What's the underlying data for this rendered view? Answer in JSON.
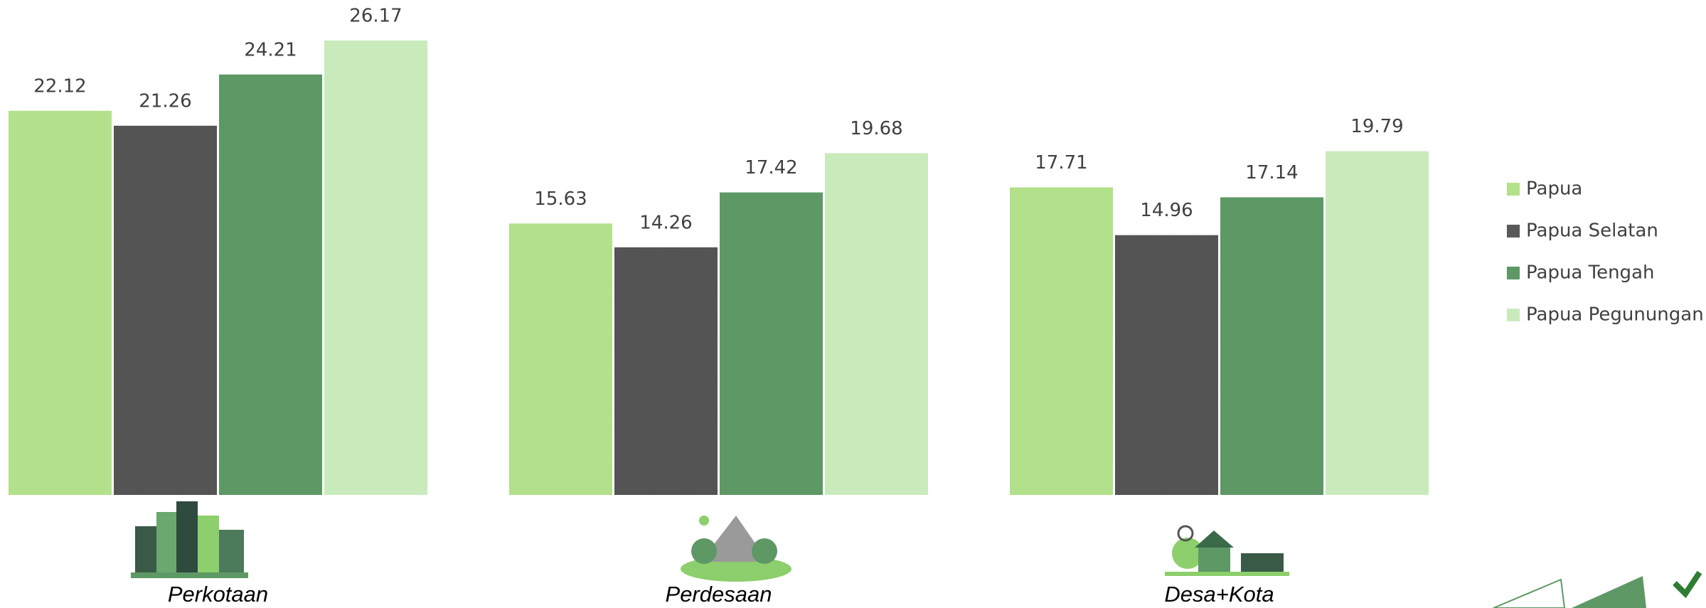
{
  "chart_data": {
    "type": "bar",
    "categories": [
      "Perkotaan",
      "Perdesaan",
      "Desa+Kota"
    ],
    "series": [
      {
        "name": "Papua",
        "color": "#b3e08a",
        "values": [
          22.12,
          15.63,
          17.71
        ]
      },
      {
        "name": "Papua Selatan",
        "color": "#595959",
        "values": [
          21.26,
          14.26,
          14.96
        ]
      },
      {
        "name": "Papua Tengah",
        "color": "#5e9865",
        "values": [
          24.21,
          17.42,
          17.14
        ]
      },
      {
        "name": "Papua Pegunungan",
        "color": "#c9ebbc",
        "values": [
          26.17,
          19.68,
          19.79
        ]
      }
    ],
    "ylim": [
      0,
      28.5
    ],
    "legend": "right"
  }
}
